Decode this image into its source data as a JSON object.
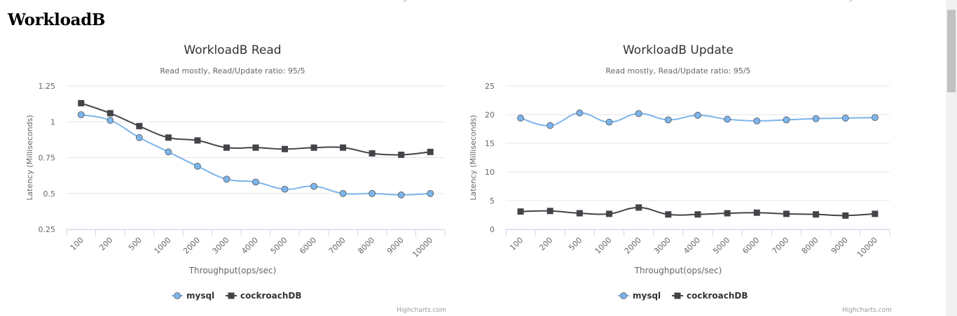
{
  "page": {
    "heading": "WorkloadB",
    "credit_text": "Highcharts.com"
  },
  "chart_data": [
    {
      "type": "line",
      "title": "WorkloadB Read",
      "subtitle": "Read mostly, Read/Update ratio: 95/5",
      "xlabel": "Throughput(ops/sec)",
      "ylabel": "Latency (Milliseconds)",
      "categories": [
        "100",
        "200",
        "500",
        "1000",
        "2000",
        "3000",
        "4000",
        "5000",
        "6000",
        "7000",
        "8000",
        "9000",
        "10000"
      ],
      "ylim": [
        0.25,
        1.25
      ],
      "yticks": [
        0.25,
        0.5,
        0.75,
        1,
        1.25
      ],
      "ytick_labels": [
        "0.25",
        "0.5",
        "0.75",
        "1",
        "1.25"
      ],
      "grid": true,
      "legend": "bottom-center",
      "series": [
        {
          "name": "mysql",
          "color": "#7cb5ec",
          "marker": "circle",
          "values": [
            1.05,
            1.01,
            0.89,
            0.79,
            0.69,
            0.6,
            0.58,
            0.53,
            0.55,
            0.5,
            0.5,
            0.49,
            0.5
          ]
        },
        {
          "name": "cockroachDB",
          "color": "#434348",
          "marker": "square",
          "values": [
            1.13,
            1.06,
            0.97,
            0.89,
            0.87,
            0.82,
            0.82,
            0.81,
            0.82,
            0.82,
            0.78,
            0.77,
            0.79
          ]
        }
      ]
    },
    {
      "type": "line",
      "title": "WorkloadB Update",
      "subtitle": "Read mostly, Read/Update ratio: 95/5",
      "xlabel": "Throughput(ops/sec)",
      "ylabel": "Latency (Milliseconds)",
      "categories": [
        "100",
        "200",
        "500",
        "1000",
        "2000",
        "3000",
        "4000",
        "5000",
        "6000",
        "7000",
        "8000",
        "9000",
        "10000"
      ],
      "ylim": [
        0,
        25
      ],
      "yticks": [
        0,
        5,
        10,
        15,
        20,
        25
      ],
      "ytick_labels": [
        "0",
        "5",
        "10",
        "15",
        "20",
        "25"
      ],
      "grid": true,
      "legend": "bottom-center",
      "series": [
        {
          "name": "mysql",
          "color": "#7cb5ec",
          "marker": "circle",
          "values": [
            19.4,
            18.1,
            20.3,
            18.7,
            20.2,
            19.1,
            19.9,
            19.2,
            18.9,
            19.1,
            19.3,
            19.4,
            19.5
          ]
        },
        {
          "name": "cockroachDB",
          "color": "#434348",
          "marker": "square",
          "values": [
            3.1,
            3.2,
            2.8,
            2.7,
            3.8,
            2.6,
            2.6,
            2.8,
            2.9,
            2.7,
            2.6,
            2.4,
            2.7
          ]
        }
      ]
    }
  ]
}
